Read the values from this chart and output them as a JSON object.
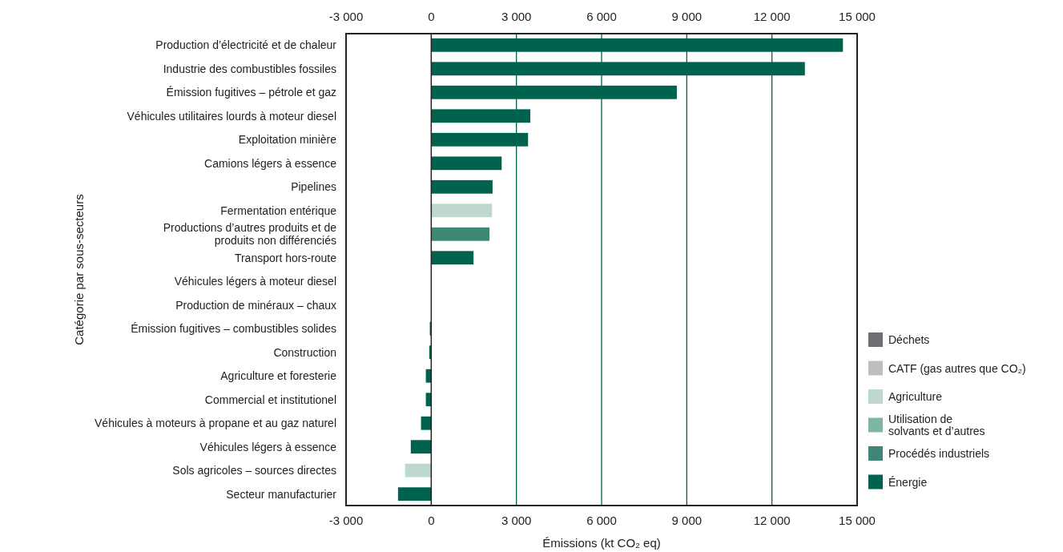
{
  "chart_data": {
    "type": "bar",
    "orientation": "horizontal",
    "xlabel": "Émissions (kt CO₂ eq)",
    "ylabel": "Catégorie par sous-secteurs",
    "categories": [
      "Production d’électricité et de chaleur",
      "Industrie des combustibles fossiles",
      "Émission fugitives – pétrole et gaz",
      "Véhicules utilitaires lourds à moteur diesel",
      "Exploitation minière",
      "Camions légers à essence",
      "Pipelines",
      "Fermentation entérique",
      "Productions d’autres produits et de produits non différenciés",
      "Transport hors-route",
      "Véhicules légers à moteur diesel",
      "Production de minéraux – chaux",
      "Émission fugitives – combustibles solides",
      "Construction",
      "Agriculture et foresterie",
      "Commercial et institutionel",
      "Véhicules à moteurs à propane et au gaz naturel",
      "Véhicules légers à essence",
      "Sols agricoles – sources directes",
      "Secteur manufacturier"
    ],
    "series": [
      {
        "name": "Déchets",
        "color": "#6d6e71",
        "values": [
          null,
          null,
          null,
          null,
          null,
          null,
          null,
          null,
          null,
          null,
          null,
          null,
          null,
          null,
          null,
          null,
          null,
          null,
          null,
          null
        ]
      },
      {
        "name": "CATF (gas autres que CO₂)",
        "color": "#bcbec0",
        "values": [
          null,
          null,
          null,
          null,
          null,
          null,
          null,
          null,
          null,
          null,
          null,
          null,
          null,
          null,
          null,
          null,
          null,
          null,
          null,
          null
        ]
      },
      {
        "name": "Agriculture",
        "color": "#bed7cf",
        "values": [
          null,
          null,
          null,
          null,
          null,
          null,
          null,
          2140,
          null,
          null,
          null,
          null,
          null,
          null,
          null,
          null,
          null,
          null,
          -920,
          null
        ]
      },
      {
        "name": "Utilisation de solvants et d’autres",
        "color": "#7fb5a5",
        "values": [
          null,
          null,
          null,
          null,
          null,
          null,
          null,
          null,
          null,
          null,
          null,
          null,
          null,
          null,
          null,
          null,
          null,
          null,
          null,
          null
        ]
      },
      {
        "name": "Procédés industriels",
        "color": "#3f8676",
        "values": [
          null,
          null,
          null,
          null,
          null,
          null,
          null,
          null,
          2050,
          null,
          null,
          0,
          null,
          null,
          null,
          null,
          null,
          null,
          null,
          null
        ]
      },
      {
        "name": "Énergie",
        "color": "#00634f",
        "values": [
          14500,
          13160,
          8650,
          3490,
          3410,
          2480,
          2160,
          null,
          null,
          1490,
          0,
          null,
          -50,
          -70,
          -190,
          -190,
          -360,
          -720,
          null,
          -1170
        ]
      }
    ],
    "xlim": [
      -3000,
      15000
    ],
    "xticks": [
      {
        "value": -3000,
        "label": "-3 000"
      },
      0,
      {
        "value": 3000,
        "label": "3 000"
      },
      {
        "value": 6000,
        "label": "6 000"
      },
      {
        "value": 9000,
        "label": "9 000"
      },
      {
        "value": 12000,
        "label": "12 000"
      },
      {
        "value": 15000,
        "label": "15 000"
      }
    ],
    "x2lim": [
      -3000,
      15000
    ],
    "x2ticks": [
      {
        "value": -3000,
        "label": "-3 000"
      },
      0,
      {
        "value": 3000,
        "label": "3 000"
      },
      {
        "value": 6000,
        "label": "6 000"
      },
      {
        "value": 9000,
        "label": "9 000"
      },
      {
        "value": 12000,
        "label": "12 000"
      },
      {
        "value": 15000,
        "label": "15 000"
      }
    ],
    "grid": "x",
    "legend": "right"
  }
}
